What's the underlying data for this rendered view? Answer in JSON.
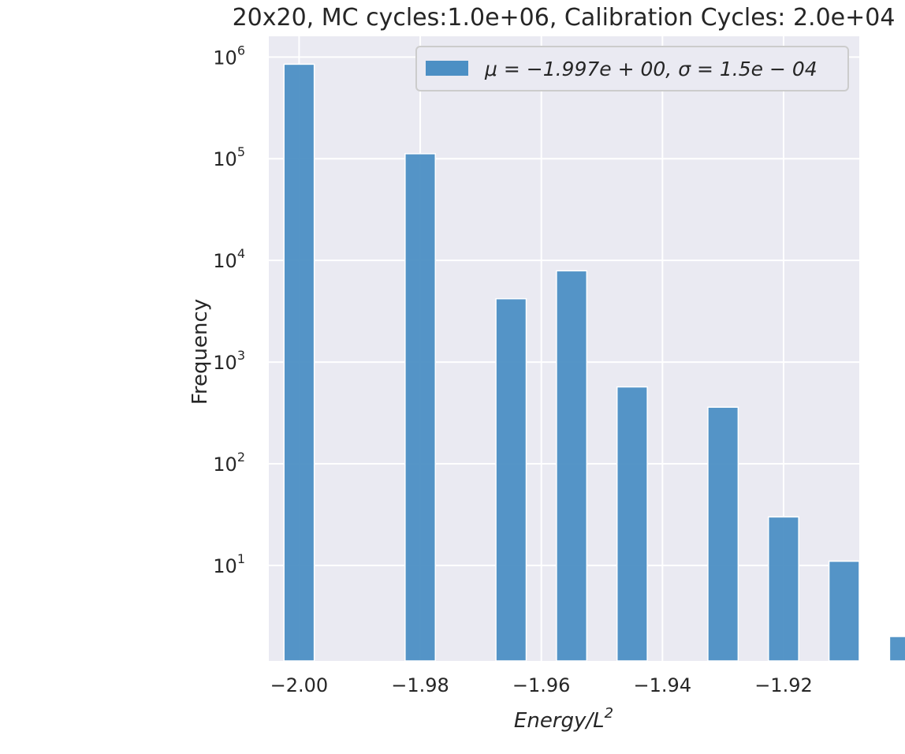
{
  "chart_data": {
    "type": "bar",
    "title": "20x20, MC cycles:1.0e+06, Calibration Cycles: 2.0e+04",
    "xlabel": "Energy/L",
    "xlabel_superscript": "2",
    "ylabel": "Frequency",
    "xlim": [
      -2.005,
      -1.9075
    ],
    "ylim": [
      1.15,
      1600000
    ],
    "yscale": "log",
    "grid": true,
    "legend_position": "top-right",
    "bar_color": "#4c8fc4",
    "background_color": "#eaeaf2",
    "grid_color": "#ffffff",
    "x_ticks": [
      {
        "value": -2.0,
        "label": "−2.00"
      },
      {
        "value": -1.98,
        "label": "−1.98"
      },
      {
        "value": -1.96,
        "label": "−1.96"
      },
      {
        "value": -1.94,
        "label": "−1.94"
      },
      {
        "value": -1.92,
        "label": "−1.92"
      }
    ],
    "y_ticks": [
      {
        "value": 10,
        "base": "10",
        "exp": "1"
      },
      {
        "value": 100,
        "base": "10",
        "exp": "2"
      },
      {
        "value": 1000,
        "base": "10",
        "exp": "3"
      },
      {
        "value": 10000,
        "base": "10",
        "exp": "4"
      },
      {
        "value": 100000,
        "base": "10",
        "exp": "5"
      },
      {
        "value": 1000000,
        "base": "10",
        "exp": "6"
      }
    ],
    "bar_width": 0.005,
    "bars": [
      {
        "x": -2.0,
        "value": 850000
      },
      {
        "x": -1.98,
        "value": 112000
      },
      {
        "x": -1.965,
        "value": 4200
      },
      {
        "x": -1.955,
        "value": 7900
      },
      {
        "x": -1.945,
        "value": 570
      },
      {
        "x": -1.93,
        "value": 360
      },
      {
        "x": -1.92,
        "value": 30
      },
      {
        "x": -1.91,
        "value": 11
      },
      {
        "x": -1.9,
        "value": 2
      }
    ],
    "series": [
      {
        "name": "μ = −1.997e + 00, σ = 1.5e − 04"
      }
    ]
  }
}
